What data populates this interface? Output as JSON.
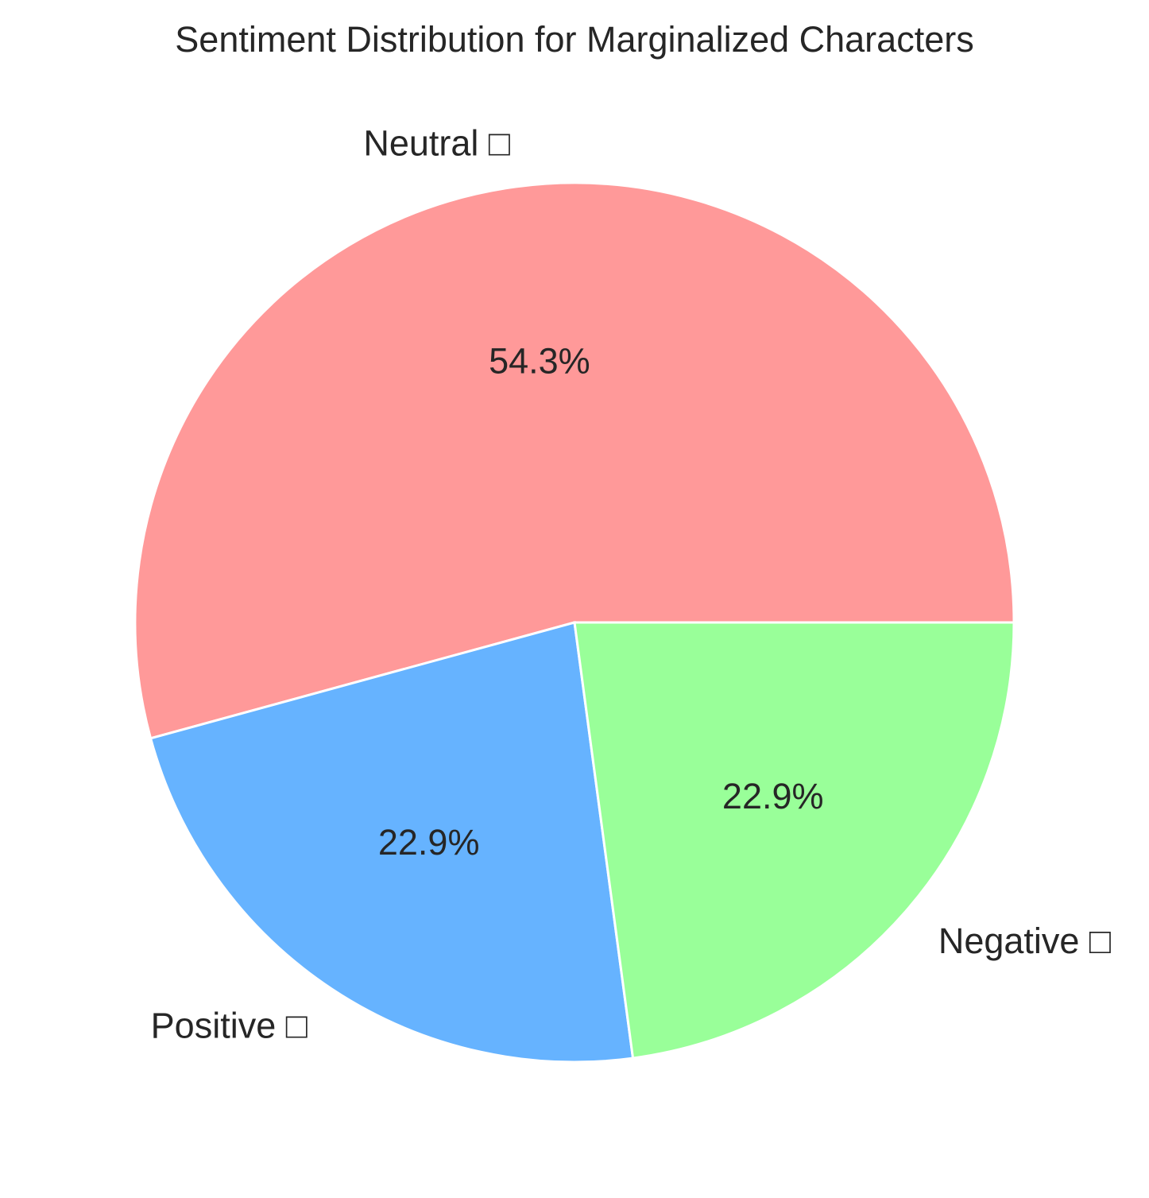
{
  "chart_data": {
    "type": "pie",
    "title": "Sentiment Distribution for Marginalized Characters",
    "slices": [
      {
        "label": "Neutral □",
        "value": 54.3,
        "pct_label": "54.3%",
        "color": "#ff9999"
      },
      {
        "label": "Positive □",
        "value": 22.9,
        "pct_label": "22.9%",
        "color": "#66b3ff"
      },
      {
        "label": "Negative □",
        "value": 22.9,
        "pct_label": "22.9%",
        "color": "#99ff99"
      }
    ]
  }
}
